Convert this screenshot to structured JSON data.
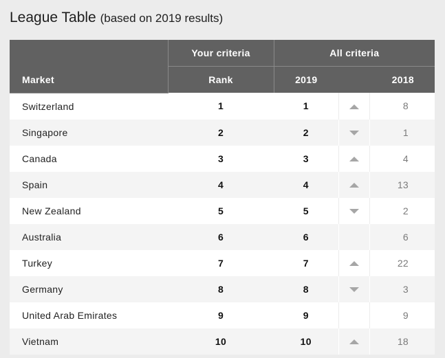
{
  "title": "League Table",
  "subtitle": "(based on 2019 results)",
  "header": {
    "market": "Market",
    "your_criteria": "Your criteria",
    "all_criteria": "All criteria",
    "rank": "Rank",
    "y2019": "2019",
    "y2018": "2018"
  },
  "rows": [
    {
      "market": "Switzerland",
      "rank": "1",
      "r2019": "1",
      "trend": "up",
      "r2018": "8"
    },
    {
      "market": "Singapore",
      "rank": "2",
      "r2019": "2",
      "trend": "down",
      "r2018": "1"
    },
    {
      "market": "Canada",
      "rank": "3",
      "r2019": "3",
      "trend": "up",
      "r2018": "4"
    },
    {
      "market": "Spain",
      "rank": "4",
      "r2019": "4",
      "trend": "up",
      "r2018": "13"
    },
    {
      "market": "New Zealand",
      "rank": "5",
      "r2019": "5",
      "trend": "down",
      "r2018": "2"
    },
    {
      "market": "Australia",
      "rank": "6",
      "r2019": "6",
      "trend": "none",
      "r2018": "6"
    },
    {
      "market": "Turkey",
      "rank": "7",
      "r2019": "7",
      "trend": "up",
      "r2018": "22"
    },
    {
      "market": "Germany",
      "rank": "8",
      "r2019": "8",
      "trend": "down",
      "r2018": "3"
    },
    {
      "market": "United Arab Emirates",
      "rank": "9",
      "r2019": "9",
      "trend": "none",
      "r2018": "9"
    },
    {
      "market": "Vietnam",
      "rank": "10",
      "r2019": "10",
      "trend": "up",
      "r2018": "18"
    }
  ],
  "colors": {
    "header_bg": "#616161",
    "page_bg": "#ececec",
    "arrow": "#a6a6a6"
  }
}
